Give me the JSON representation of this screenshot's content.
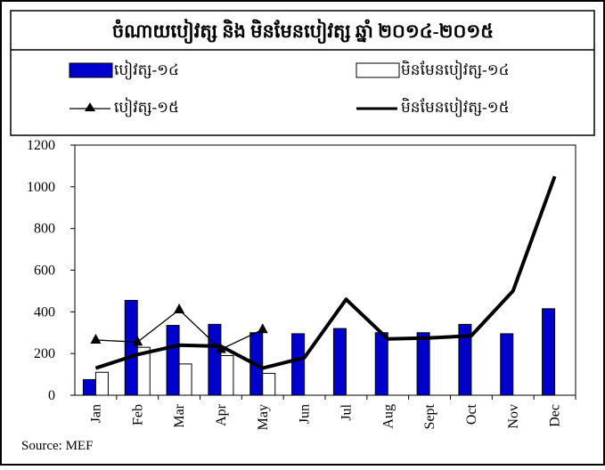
{
  "chart_data": {
    "type": "bar-line",
    "title": "ចំណាយបៀវត្ស និង មិនមែនបៀវត្ស ឆ្នាំ ២០១៤-២០១៥",
    "categories": [
      "Jan",
      "Feb",
      "Mar",
      "Apr",
      "May",
      "Jun",
      "Jul",
      "Aug",
      "Sept",
      "Oct",
      "Nov",
      "Dec"
    ],
    "series": [
      {
        "name": "បៀវត្ស-១៤",
        "kind": "bar",
        "color": "#0000cc",
        "values": [
          75,
          455,
          335,
          340,
          300,
          295,
          320,
          300,
          300,
          340,
          295,
          415
        ]
      },
      {
        "name": "មិនមែនបៀវត្ស-១៤",
        "kind": "bar",
        "color": "#ffffff",
        "values": [
          110,
          230,
          150,
          190,
          105,
          null,
          null,
          null,
          null,
          null,
          null,
          null
        ]
      },
      {
        "name": "បៀវត្ស-១៥",
        "kind": "line-marker",
        "color": "#000000",
        "values": [
          265,
          255,
          410,
          220,
          315,
          null,
          null,
          null,
          null,
          null,
          null,
          null
        ]
      },
      {
        "name": "មិនមែនបៀវត្ស-១៥",
        "kind": "line-thick",
        "color": "#000000",
        "values": [
          130,
          195,
          240,
          235,
          130,
          180,
          460,
          270,
          275,
          285,
          500,
          1050
        ]
      }
    ],
    "ylim": [
      0,
      1200
    ],
    "yticks": [
      0,
      200,
      400,
      600,
      800,
      1000,
      1200
    ],
    "source": "Source: MEF"
  }
}
